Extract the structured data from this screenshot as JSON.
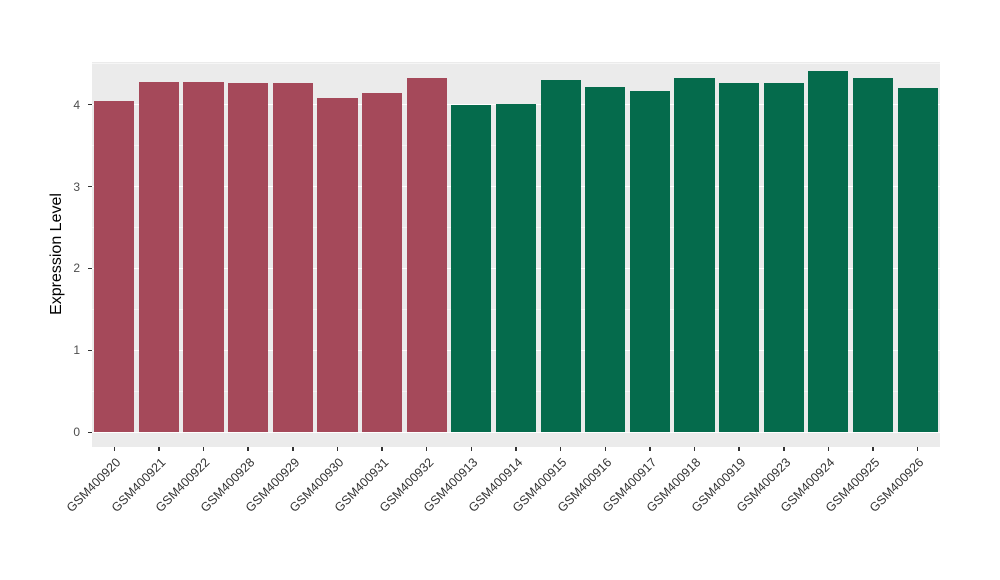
{
  "chart_data": {
    "type": "bar",
    "title": "",
    "xlabel": "",
    "ylabel": "Expression Level",
    "categories": [
      "GSM400920",
      "GSM400921",
      "GSM400922",
      "GSM400928",
      "GSM400929",
      "GSM400930",
      "GSM400931",
      "GSM400932",
      "GSM400913",
      "GSM400914",
      "GSM400915",
      "GSM400916",
      "GSM400917",
      "GSM400918",
      "GSM400919",
      "GSM400923",
      "GSM400924",
      "GSM400925",
      "GSM400926"
    ],
    "values": [
      4.04,
      4.28,
      4.27,
      4.26,
      4.26,
      4.08,
      4.14,
      4.32,
      4.0,
      4.01,
      4.3,
      4.22,
      4.17,
      4.33,
      4.26,
      4.26,
      4.41,
      4.32,
      4.2
    ],
    "groups": [
      "red",
      "red",
      "red",
      "red",
      "red",
      "red",
      "red",
      "red",
      "green",
      "green",
      "green",
      "green",
      "green",
      "green",
      "green",
      "green",
      "green",
      "green",
      "green"
    ],
    "group_colors": {
      "red": "#A5495A",
      "green": "#056B4C"
    },
    "yticks": [
      0,
      1,
      2,
      3,
      4
    ],
    "minor_ticks": [
      0.5,
      1.5,
      2.5,
      3.5,
      4.5
    ],
    "ylim": [
      -0.18,
      4.52
    ],
    "bar_width_fraction": 0.9,
    "panel_bg": "#EBEBEB",
    "grid_color": "#FFFFFF",
    "grid": "on",
    "legend_position": "none",
    "x_label_rotation_deg": 45
  }
}
